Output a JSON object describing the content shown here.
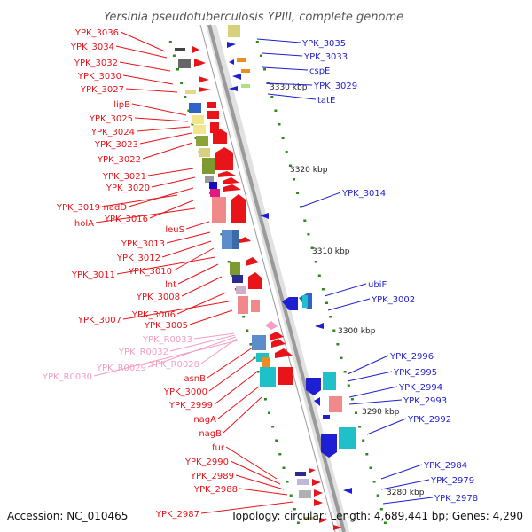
{
  "title": "Yersinia pseudotuberculosis YPIII, complete genome",
  "footer": {
    "accession": "Accession: NC_010465",
    "summary": "Topology: circular; Length: 4,689,441 bp; Genes: 4,290"
  },
  "scale_labels": [
    "3330 kbp",
    "3320 kbp",
    "3310 kbp",
    "3300 kbp",
    "3290 kbp",
    "3280 kbp"
  ],
  "left_labels": [
    {
      "text": "YPK_3036",
      "color": "red"
    },
    {
      "text": "YPK_3034",
      "color": "red"
    },
    {
      "text": "YPK_3032",
      "color": "red"
    },
    {
      "text": "YPK_3030",
      "color": "red"
    },
    {
      "text": "YPK_3027",
      "color": "red"
    },
    {
      "text": "lipB",
      "color": "red"
    },
    {
      "text": "YPK_3025",
      "color": "red"
    },
    {
      "text": "YPK_3024",
      "color": "red"
    },
    {
      "text": "YPK_3023",
      "color": "red"
    },
    {
      "text": "YPK_3022",
      "color": "red"
    },
    {
      "text": "YPK_3021",
      "color": "red"
    },
    {
      "text": "YPK_3020",
      "color": "red"
    },
    {
      "text": "YPK_3019",
      "color": "red"
    },
    {
      "text": "nadD",
      "color": "red"
    },
    {
      "text": "YPK_3016",
      "color": "red"
    },
    {
      "text": "holA",
      "color": "red"
    },
    {
      "text": "leuS",
      "color": "red"
    },
    {
      "text": "YPK_3013",
      "color": "red"
    },
    {
      "text": "YPK_3012",
      "color": "red"
    },
    {
      "text": "YPK_3010",
      "color": "red"
    },
    {
      "text": "YPK_3011",
      "color": "red"
    },
    {
      "text": "lnt",
      "color": "red"
    },
    {
      "text": "YPK_3008",
      "color": "red"
    },
    {
      "text": "YPK_3006",
      "color": "red"
    },
    {
      "text": "YPK_3007",
      "color": "red"
    },
    {
      "text": "YPK_3005",
      "color": "red"
    },
    {
      "text": "YPK_R0033",
      "color": "pink"
    },
    {
      "text": "YPK_R0032",
      "color": "pink"
    },
    {
      "text": "YPK_R0029",
      "color": "pink"
    },
    {
      "text": "YPK_R0028",
      "color": "pink"
    },
    {
      "text": "YPK_R0030",
      "color": "pink"
    },
    {
      "text": "asnB",
      "color": "red"
    },
    {
      "text": "YPK_3000",
      "color": "red"
    },
    {
      "text": "YPK_2999",
      "color": "red"
    },
    {
      "text": "nagA",
      "color": "red"
    },
    {
      "text": "nagB",
      "color": "red"
    },
    {
      "text": "fur",
      "color": "red"
    },
    {
      "text": "YPK_2990",
      "color": "red"
    },
    {
      "text": "YPK_2989",
      "color": "red"
    },
    {
      "text": "YPK_2988",
      "color": "red"
    },
    {
      "text": "YPK_2987",
      "color": "red"
    }
  ],
  "right_labels": [
    {
      "text": "YPK_3035",
      "color": "blue"
    },
    {
      "text": "YPK_3033",
      "color": "blue"
    },
    {
      "text": "cspE",
      "color": "blue"
    },
    {
      "text": "YPK_3029",
      "color": "blue"
    },
    {
      "text": "tatE",
      "color": "blue"
    },
    {
      "text": "YPK_3014",
      "color": "blue"
    },
    {
      "text": "ubiF",
      "color": "blue"
    },
    {
      "text": "YPK_3002",
      "color": "blue"
    },
    {
      "text": "YPK_2996",
      "color": "blue"
    },
    {
      "text": "YPK_2995",
      "color": "blue"
    },
    {
      "text": "YPK_2994",
      "color": "blue"
    },
    {
      "text": "YPK_2993",
      "color": "blue"
    },
    {
      "text": "YPK_2992",
      "color": "blue"
    },
    {
      "text": "YPK_2984",
      "color": "blue"
    },
    {
      "text": "YPK_2979",
      "color": "blue"
    },
    {
      "text": "YPK_2978",
      "color": "blue"
    }
  ],
  "colors": {
    "forward": "#e8141a",
    "reverse": "#1e1ed2",
    "rna": "#f59cc4",
    "backbone": "#9a9a9a",
    "tick": "#2a8a1a"
  }
}
